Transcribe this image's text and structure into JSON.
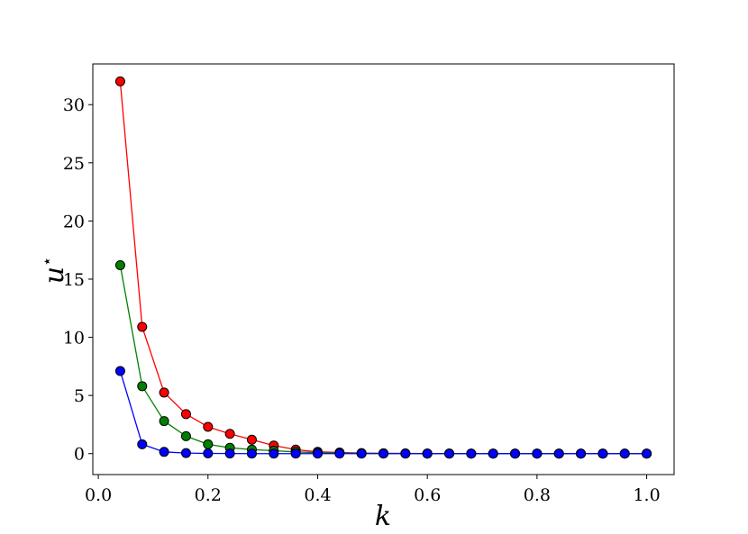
{
  "chart_data": {
    "type": "line",
    "title": "",
    "xlabel": "k",
    "ylabel": "u",
    "ylabel_superscript": "⋆",
    "xlim": [
      -0.01,
      1.05
    ],
    "ylim": [
      -1.8,
      33.5
    ],
    "grid": false,
    "legend": "none",
    "x_ticks": [
      {
        "value": 0.0,
        "label": "0.0"
      },
      {
        "value": 0.2,
        "label": "0.2"
      },
      {
        "value": 0.4,
        "label": "0.4"
      },
      {
        "value": 0.6,
        "label": "0.6"
      },
      {
        "value": 0.8,
        "label": "0.8"
      },
      {
        "value": 1.0,
        "label": "1.0"
      }
    ],
    "y_ticks": [
      {
        "value": 0,
        "label": "0"
      },
      {
        "value": 5,
        "label": "5"
      },
      {
        "value": 10,
        "label": "10"
      },
      {
        "value": 15,
        "label": "15"
      },
      {
        "value": 20,
        "label": "20"
      },
      {
        "value": 25,
        "label": "25"
      },
      {
        "value": 30,
        "label": "30"
      }
    ],
    "x": [
      0.04,
      0.08,
      0.12,
      0.16,
      0.2,
      0.24,
      0.28,
      0.32,
      0.36,
      0.4,
      0.44,
      0.48,
      0.52,
      0.56,
      0.6,
      0.64,
      0.68,
      0.72,
      0.76,
      0.8,
      0.84,
      0.88,
      0.92,
      0.96,
      1.0
    ],
    "series": [
      {
        "color": "#ff0000",
        "values": [
          32.0,
          10.9,
          5.25,
          3.4,
          2.3,
          1.7,
          1.2,
          0.7,
          0.35,
          0.15,
          0.1,
          0.05,
          0.03,
          0.02,
          0.01,
          0.01,
          0.0,
          0.0,
          0.0,
          0.0,
          0.0,
          0.0,
          0.0,
          0.0,
          0.0
        ]
      },
      {
        "color": "#008000",
        "values": [
          16.2,
          5.8,
          2.8,
          1.5,
          0.8,
          0.5,
          0.35,
          0.25,
          0.15,
          0.08,
          0.05,
          0.03,
          0.02,
          0.01,
          0.0,
          0.0,
          0.0,
          0.0,
          0.0,
          0.0,
          0.0,
          0.0,
          0.0,
          0.0,
          0.0
        ]
      },
      {
        "color": "#0000ff",
        "values": [
          7.1,
          0.8,
          0.15,
          0.05,
          0.02,
          0.01,
          0.0,
          0.0,
          0.0,
          0.0,
          0.0,
          0.0,
          0.0,
          0.0,
          0.0,
          0.0,
          0.0,
          0.0,
          0.0,
          0.0,
          0.0,
          0.0,
          0.0,
          0.0,
          0.0
        ]
      }
    ]
  }
}
